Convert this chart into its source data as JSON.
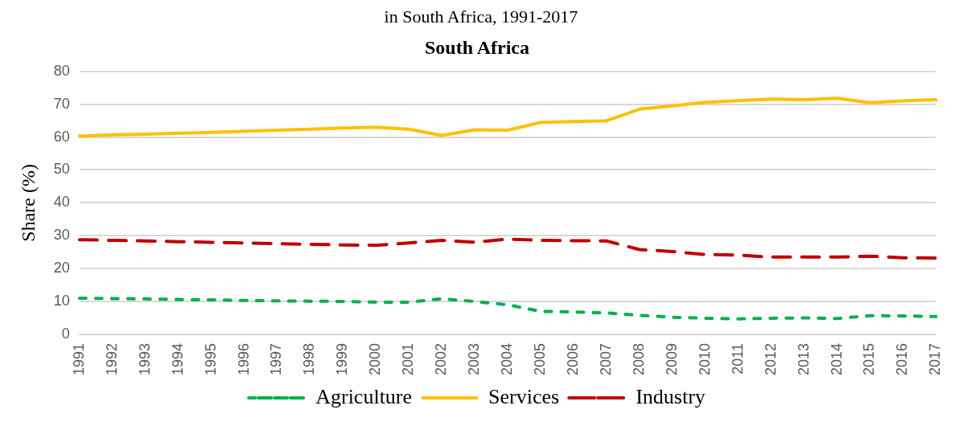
{
  "chart_data": {
    "type": "line",
    "subtitle": "in South Africa, 1991-2017",
    "title": "South Africa",
    "ylabel": "Share (%)",
    "categories": [
      "1991",
      "1992",
      "1993",
      "1994",
      "1995",
      "1996",
      "1997",
      "1998",
      "1999",
      "2000",
      "2001",
      "2002",
      "2003",
      "2004",
      "2005",
      "2006",
      "2007",
      "2008",
      "2009",
      "2010",
      "2011",
      "2012",
      "2013",
      "2014",
      "2015",
      "2016",
      "2017"
    ],
    "series": [
      {
        "name": "Agriculture",
        "color": "#00b050",
        "line_style": "dotted",
        "values": [
          11.0,
          10.9,
          10.8,
          10.6,
          10.5,
          10.3,
          10.2,
          10.1,
          10.0,
          9.8,
          9.8,
          10.8,
          10.0,
          9.0,
          7.0,
          6.8,
          6.5,
          5.8,
          5.2,
          4.9,
          4.7,
          4.9,
          5.0,
          4.8,
          5.7,
          5.6,
          5.4
        ]
      },
      {
        "name": "Services",
        "color": "#ffc000",
        "line_style": "solid",
        "values": [
          60.3,
          60.7,
          60.9,
          61.2,
          61.4,
          61.8,
          62.1,
          62.4,
          62.8,
          63.0,
          62.4,
          60.5,
          62.2,
          62.1,
          64.5,
          64.7,
          65.0,
          68.5,
          69.5,
          70.6,
          71.1,
          71.6,
          71.4,
          71.8,
          70.5,
          71.0,
          71.4
        ]
      },
      {
        "name": "Industry",
        "color": "#c00000",
        "line_style": "dashed",
        "values": [
          28.8,
          28.6,
          28.4,
          28.2,
          28.0,
          27.8,
          27.6,
          27.4,
          27.2,
          27.1,
          27.8,
          28.6,
          28.0,
          29.0,
          28.6,
          28.5,
          28.4,
          25.8,
          25.2,
          24.3,
          24.1,
          23.5,
          23.5,
          23.5,
          23.8,
          23.3,
          23.2
        ]
      }
    ],
    "ylim": [
      0,
      80
    ],
    "yticks": [
      0,
      10,
      20,
      30,
      40,
      50,
      60,
      70,
      80
    ],
    "grid": "y",
    "legend": "bottom",
    "marker": "none"
  }
}
